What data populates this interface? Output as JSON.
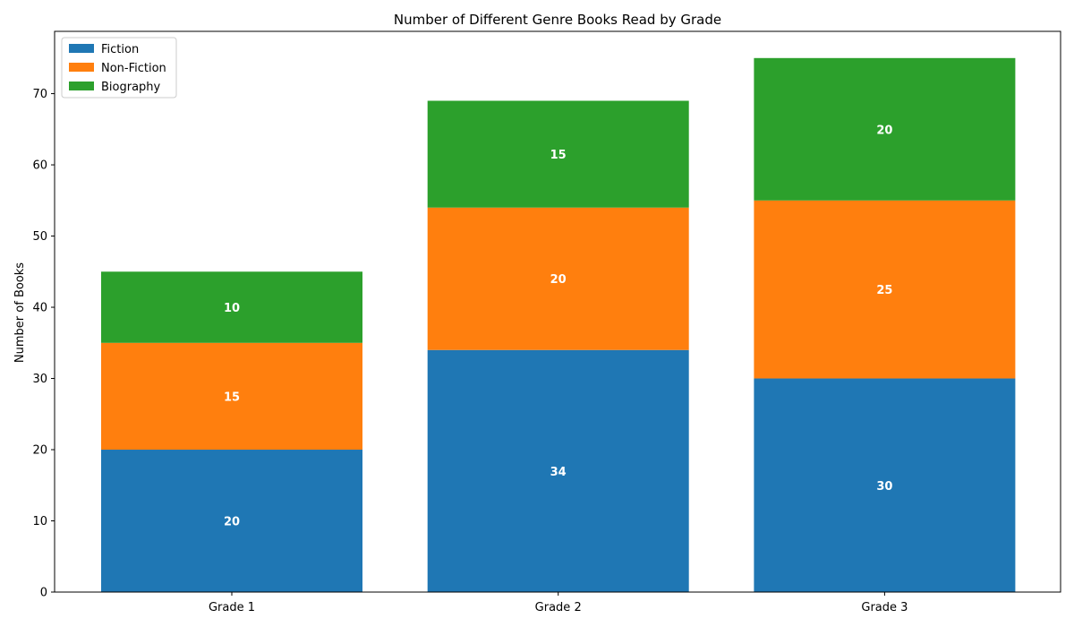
{
  "chart_data": {
    "type": "bar",
    "stacked": true,
    "title": "Number of Different Genre Books Read by Grade",
    "xlabel": "",
    "ylabel": "Number of Books",
    "categories": [
      "Grade 1",
      "Grade 2",
      "Grade 3"
    ],
    "series": [
      {
        "name": "Fiction",
        "values": [
          20,
          34,
          30
        ],
        "color": "#1f77b4"
      },
      {
        "name": "Non-Fiction",
        "values": [
          15,
          20,
          25
        ],
        "color": "#ff7f0e"
      },
      {
        "name": "Biography",
        "values": [
          10,
          15,
          20
        ],
        "color": "#2ca02c"
      }
    ],
    "ylim": [
      0,
      78.75
    ],
    "yticks": [
      0,
      10,
      20,
      30,
      40,
      50,
      60,
      70
    ],
    "legend": "top-left",
    "grid": false
  }
}
